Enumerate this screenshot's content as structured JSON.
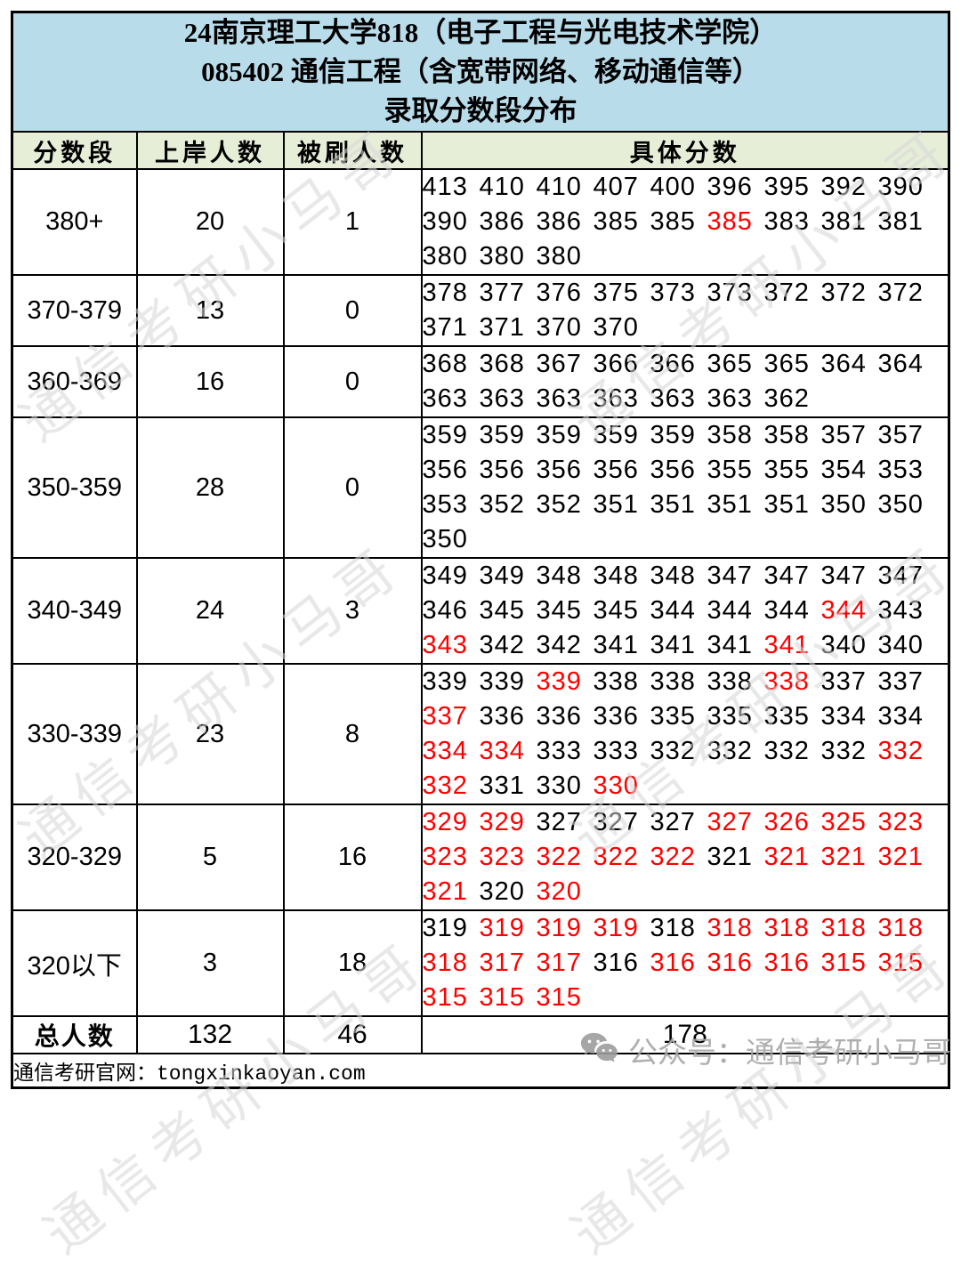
{
  "title": {
    "line1": "24南京理工大学818（电子工程与光电技术学院）",
    "line2": "085402 通信工程（含宽带网络、移动通信等）",
    "line3": "录取分数段分布"
  },
  "table": {
    "headers": [
      "分数段",
      "上岸人数",
      "被刷人数",
      "具体分数"
    ],
    "rows": [
      {
        "range": "380+",
        "admitted": "20",
        "rejected": "1",
        "score_lines": [
          [
            {
              "v": "413"
            },
            {
              "v": "410"
            },
            {
              "v": "410"
            },
            {
              "v": "407"
            },
            {
              "v": "400"
            },
            {
              "v": "396"
            },
            {
              "v": "395"
            },
            {
              "v": "392"
            },
            {
              "v": "390"
            }
          ],
          [
            {
              "v": "390"
            },
            {
              "v": "386"
            },
            {
              "v": "386"
            },
            {
              "v": "385"
            },
            {
              "v": "385"
            },
            {
              "v": "385",
              "red": true
            },
            {
              "v": "383"
            },
            {
              "v": "381"
            },
            {
              "v": "381"
            }
          ],
          [
            {
              "v": "380"
            },
            {
              "v": "380"
            },
            {
              "v": "380"
            }
          ]
        ]
      },
      {
        "range": "370-379",
        "admitted": "13",
        "rejected": "0",
        "score_lines": [
          [
            {
              "v": "378"
            },
            {
              "v": "377"
            },
            {
              "v": "376"
            },
            {
              "v": "375"
            },
            {
              "v": "373"
            },
            {
              "v": "373"
            },
            {
              "v": "372"
            },
            {
              "v": "372"
            },
            {
              "v": "372"
            }
          ],
          [
            {
              "v": "371"
            },
            {
              "v": "371"
            },
            {
              "v": "370"
            },
            {
              "v": "370"
            }
          ]
        ]
      },
      {
        "range": "360-369",
        "admitted": "16",
        "rejected": "0",
        "score_lines": [
          [
            {
              "v": "368"
            },
            {
              "v": "368"
            },
            {
              "v": "367"
            },
            {
              "v": "366"
            },
            {
              "v": "366"
            },
            {
              "v": "365"
            },
            {
              "v": "365"
            },
            {
              "v": "364"
            },
            {
              "v": "364"
            }
          ],
          [
            {
              "v": "363"
            },
            {
              "v": "363"
            },
            {
              "v": "363"
            },
            {
              "v": "363"
            },
            {
              "v": "363"
            },
            {
              "v": "363"
            },
            {
              "v": "362"
            }
          ]
        ]
      },
      {
        "range": "350-359",
        "admitted": "28",
        "rejected": "0",
        "score_lines": [
          [
            {
              "v": "359"
            },
            {
              "v": "359"
            },
            {
              "v": "359"
            },
            {
              "v": "359"
            },
            {
              "v": "359"
            },
            {
              "v": "358"
            },
            {
              "v": "358"
            },
            {
              "v": "357"
            },
            {
              "v": "357"
            }
          ],
          [
            {
              "v": "356"
            },
            {
              "v": "356"
            },
            {
              "v": "356"
            },
            {
              "v": "356"
            },
            {
              "v": "356"
            },
            {
              "v": "355"
            },
            {
              "v": "355"
            },
            {
              "v": "354"
            },
            {
              "v": "353"
            }
          ],
          [
            {
              "v": "353"
            },
            {
              "v": "352"
            },
            {
              "v": "352"
            },
            {
              "v": "351"
            },
            {
              "v": "351"
            },
            {
              "v": "351"
            },
            {
              "v": "351"
            },
            {
              "v": "350"
            },
            {
              "v": "350"
            }
          ],
          [
            {
              "v": "350"
            }
          ]
        ]
      },
      {
        "range": "340-349",
        "admitted": "24",
        "rejected": "3",
        "score_lines": [
          [
            {
              "v": "349"
            },
            {
              "v": "349"
            },
            {
              "v": "348"
            },
            {
              "v": "348"
            },
            {
              "v": "348"
            },
            {
              "v": "347"
            },
            {
              "v": "347"
            },
            {
              "v": "347"
            },
            {
              "v": "347"
            }
          ],
          [
            {
              "v": "346"
            },
            {
              "v": "345"
            },
            {
              "v": "345"
            },
            {
              "v": "345"
            },
            {
              "v": "344"
            },
            {
              "v": "344"
            },
            {
              "v": "344"
            },
            {
              "v": "344",
              "red": true
            },
            {
              "v": "343"
            }
          ],
          [
            {
              "v": "343",
              "red": true
            },
            {
              "v": "342"
            },
            {
              "v": "342"
            },
            {
              "v": "341"
            },
            {
              "v": "341"
            },
            {
              "v": "341"
            },
            {
              "v": "341",
              "red": true
            },
            {
              "v": "340"
            },
            {
              "v": "340"
            }
          ]
        ]
      },
      {
        "range": "330-339",
        "admitted": "23",
        "rejected": "8",
        "score_lines": [
          [
            {
              "v": "339"
            },
            {
              "v": "339"
            },
            {
              "v": "339",
              "red": true
            },
            {
              "v": "338"
            },
            {
              "v": "338"
            },
            {
              "v": "338"
            },
            {
              "v": "338",
              "red": true
            },
            {
              "v": "337"
            },
            {
              "v": "337"
            }
          ],
          [
            {
              "v": "337",
              "red": true
            },
            {
              "v": "336"
            },
            {
              "v": "336"
            },
            {
              "v": "336"
            },
            {
              "v": "335"
            },
            {
              "v": "335"
            },
            {
              "v": "335"
            },
            {
              "v": "334"
            },
            {
              "v": "334"
            }
          ],
          [
            {
              "v": "334",
              "red": true
            },
            {
              "v": "334",
              "red": true
            },
            {
              "v": "333"
            },
            {
              "v": "333"
            },
            {
              "v": "332"
            },
            {
              "v": "332"
            },
            {
              "v": "332"
            },
            {
              "v": "332"
            },
            {
              "v": "332",
              "red": true
            }
          ],
          [
            {
              "v": "332",
              "red": true
            },
            {
              "v": "331"
            },
            {
              "v": "330"
            },
            {
              "v": "330",
              "red": true
            }
          ]
        ]
      },
      {
        "range": "320-329",
        "admitted": "5",
        "rejected": "16",
        "score_lines": [
          [
            {
              "v": "329",
              "red": true
            },
            {
              "v": "329",
              "red": true
            },
            {
              "v": "327"
            },
            {
              "v": "327"
            },
            {
              "v": "327"
            },
            {
              "v": "327",
              "red": true
            },
            {
              "v": "326",
              "red": true
            },
            {
              "v": "325",
              "red": true
            },
            {
              "v": "323",
              "red": true
            }
          ],
          [
            {
              "v": "323",
              "red": true
            },
            {
              "v": "323",
              "red": true
            },
            {
              "v": "322",
              "red": true
            },
            {
              "v": "322",
              "red": true
            },
            {
              "v": "322",
              "red": true
            },
            {
              "v": "321"
            },
            {
              "v": "321",
              "red": true
            },
            {
              "v": "321",
              "red": true
            },
            {
              "v": "321",
              "red": true
            }
          ],
          [
            {
              "v": "321",
              "red": true
            },
            {
              "v": "320"
            },
            {
              "v": "320",
              "red": true
            }
          ]
        ]
      },
      {
        "range": "320以下",
        "admitted": "3",
        "rejected": "18",
        "score_lines": [
          [
            {
              "v": "319"
            },
            {
              "v": "319",
              "red": true
            },
            {
              "v": "319",
              "red": true
            },
            {
              "v": "319",
              "red": true
            },
            {
              "v": "318"
            },
            {
              "v": "318",
              "red": true
            },
            {
              "v": "318",
              "red": true
            },
            {
              "v": "318",
              "red": true
            },
            {
              "v": "318",
              "red": true
            }
          ],
          [
            {
              "v": "318",
              "red": true
            },
            {
              "v": "317",
              "red": true
            },
            {
              "v": "317",
              "red": true
            },
            {
              "v": "316"
            },
            {
              "v": "316",
              "red": true
            },
            {
              "v": "316",
              "red": true
            },
            {
              "v": "316",
              "red": true
            },
            {
              "v": "315",
              "red": true
            },
            {
              "v": "315",
              "red": true
            }
          ],
          [
            {
              "v": "315",
              "red": true
            },
            {
              "v": "315",
              "red": true
            },
            {
              "v": "315",
              "red": true
            }
          ]
        ]
      }
    ],
    "total": {
      "label": "总人数",
      "admitted": "132",
      "rejected": "46",
      "combined": "178"
    }
  },
  "footer": {
    "text": "通信考研官网：tongxinkaoyan.com"
  },
  "watermark": {
    "diagonal_text": "通信考研小马哥",
    "corner_text": "公众号：通信考研小马哥",
    "corner_icon": "wechat-icon"
  },
  "colors": {
    "title_bg": "#b9dcea",
    "header_bg": "#e7eed8",
    "score_red": "#fe0000",
    "text_black": "#000000",
    "watermark_gray": "#d7d7d7",
    "corner_gray": "#a7a7a7",
    "border": "#000000"
  }
}
